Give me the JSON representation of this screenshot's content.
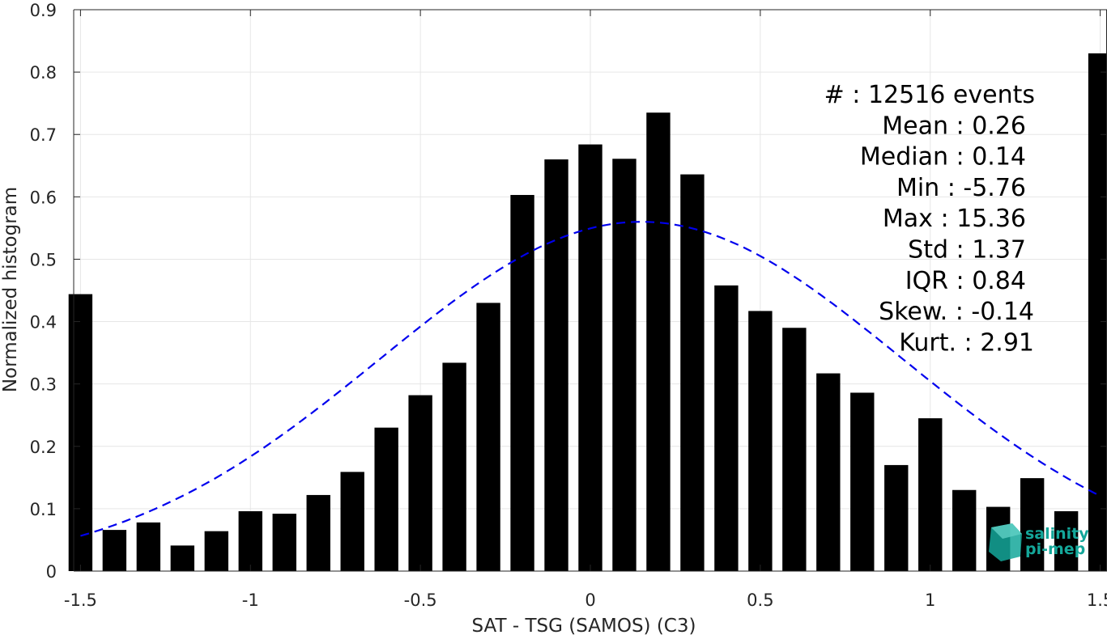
{
  "chart_data": {
    "type": "bar",
    "xlabel": "SAT - TSG (SAMOS) (C3)",
    "ylabel": "Normalized histogram",
    "xlim": [
      -1.52,
      1.52
    ],
    "ylim": [
      0,
      0.9
    ],
    "x_ticks": [
      "-1.5",
      "-1",
      "-0.5",
      "0",
      "0.5",
      "1",
      "1.5"
    ],
    "x_tick_values": [
      -1.5,
      -1,
      -0.5,
      0,
      0.5,
      1,
      1.5
    ],
    "y_ticks": [
      "0",
      "0.1",
      "0.2",
      "0.3",
      "0.4",
      "0.5",
      "0.6",
      "0.7",
      "0.8",
      "0.9"
    ],
    "y_tick_values": [
      0,
      0.1,
      0.2,
      0.3,
      0.4,
      0.5,
      0.6,
      0.7,
      0.8,
      0.9
    ],
    "grid": true,
    "bar_color": "#000000",
    "bins": [
      -1.5,
      -1.4,
      -1.3,
      -1.2,
      -1.1,
      -1.0,
      -0.9,
      -0.8,
      -0.7,
      -0.6,
      -0.5,
      -0.4,
      -0.3,
      -0.2,
      -0.1,
      0.0,
      0.1,
      0.2,
      0.3,
      0.4,
      0.5,
      0.6,
      0.7,
      0.8,
      0.9,
      1.0,
      1.1,
      1.2,
      1.3,
      1.4,
      1.5
    ],
    "values": [
      0.444,
      0.066,
      0.078,
      0.041,
      0.064,
      0.096,
      0.092,
      0.122,
      0.159,
      0.23,
      0.282,
      0.334,
      0.43,
      0.603,
      0.66,
      0.684,
      0.661,
      0.735,
      0.636,
      0.458,
      0.417,
      0.39,
      0.317,
      0.286,
      0.17,
      0.245,
      0.13,
      0.103,
      0.149,
      0.096,
      0.83
    ],
    "fit_curve": {
      "style": "dashed",
      "color": "#0000ee",
      "mean": 0.15,
      "std": 0.77,
      "peak": 0.56,
      "x_range": [
        -1.5,
        1.5
      ]
    },
    "annotations": [
      "#  : 12516 events",
      "Mean : 0.26",
      "Median : 0.14",
      "Min : -5.76",
      "Max : 15.36",
      "Std : 1.37",
      "IQR : 0.84",
      "Skew. : -0.14",
      "Kurt. : 2.91"
    ]
  },
  "logo": {
    "line1": "salinity",
    "line2": "pi-mep",
    "color": "#14a79a"
  }
}
